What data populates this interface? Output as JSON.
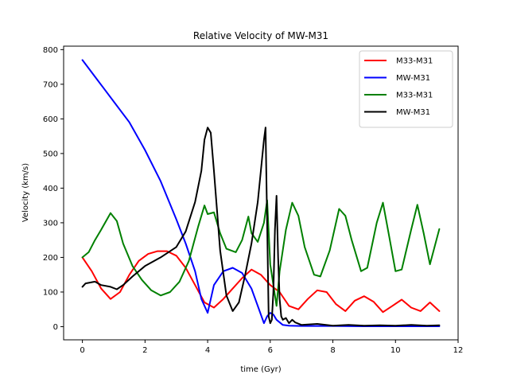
{
  "chart_data": {
    "type": "line",
    "title": "Relative Velocity of MW-M31",
    "xlabel": "time (Gyr)",
    "ylabel": "Velocity (km/s)",
    "xlim": [
      -0.6,
      12
    ],
    "ylim": [
      -38,
      810
    ],
    "xticks": [
      0,
      2,
      4,
      6,
      8,
      10,
      12
    ],
    "yticks": [
      0,
      100,
      200,
      300,
      400,
      500,
      600,
      700,
      800
    ],
    "grid": false,
    "legend_position": "top-right",
    "series": [
      {
        "name": "M33-M31",
        "color": "#ff0000",
        "x": [
          0.0,
          0.3,
          0.6,
          0.9,
          1.2,
          1.5,
          1.8,
          2.1,
          2.4,
          2.7,
          3.0,
          3.3,
          3.6,
          3.9,
          4.2,
          4.5,
          4.8,
          5.1,
          5.4,
          5.7,
          6.0,
          6.3,
          6.6,
          6.9,
          7.2,
          7.5,
          7.8,
          8.1,
          8.4,
          8.7,
          9.0,
          9.3,
          9.6,
          9.9,
          10.2,
          10.5,
          10.8,
          11.1,
          11.4
        ],
        "y": [
          200,
          160,
          110,
          80,
          100,
          150,
          190,
          210,
          218,
          218,
          205,
          170,
          120,
          70,
          55,
          80,
          110,
          140,
          165,
          150,
          120,
          100,
          60,
          50,
          80,
          105,
          100,
          65,
          45,
          75,
          88,
          72,
          42,
          60,
          78,
          55,
          45,
          70,
          45
        ]
      },
      {
        "name": "MW-M31",
        "color": "#0000ff",
        "x": [
          0.0,
          0.5,
          1.0,
          1.5,
          2.0,
          2.5,
          3.0,
          3.3,
          3.6,
          3.8,
          4.0,
          4.2,
          4.5,
          4.8,
          5.1,
          5.4,
          5.6,
          5.8,
          5.9,
          6.0,
          6.1,
          6.2,
          6.4,
          6.6,
          7.0,
          8.0,
          9.0,
          10.0,
          11.0,
          11.4
        ],
        "y": [
          770,
          710,
          650,
          590,
          510,
          420,
          310,
          240,
          160,
          80,
          40,
          120,
          160,
          170,
          155,
          110,
          60,
          10,
          30,
          40,
          35,
          20,
          5,
          3,
          2,
          2,
          1,
          1,
          1,
          1
        ]
      },
      {
        "name": "M33-M31",
        "color": "#008000",
        "x": [
          0.0,
          0.2,
          0.4,
          0.6,
          0.9,
          1.1,
          1.3,
          1.6,
          1.9,
          2.2,
          2.5,
          2.8,
          3.1,
          3.4,
          3.7,
          3.9,
          4.0,
          4.2,
          4.4,
          4.6,
          4.9,
          5.1,
          5.3,
          5.4,
          5.6,
          5.8,
          5.9,
          6.0,
          6.2,
          6.3,
          6.5,
          6.7,
          6.9,
          7.1,
          7.4,
          7.6,
          7.9,
          8.2,
          8.4,
          8.6,
          8.9,
          9.1,
          9.4,
          9.6,
          9.8,
          10.0,
          10.2,
          10.5,
          10.7,
          10.9,
          11.1,
          11.4
        ],
        "y": [
          200,
          215,
          250,
          280,
          328,
          305,
          240,
          175,
          135,
          105,
          90,
          100,
          130,
          190,
          290,
          350,
          325,
          330,
          270,
          225,
          215,
          250,
          318,
          270,
          245,
          300,
          365,
          180,
          60,
          160,
          280,
          358,
          320,
          230,
          150,
          145,
          220,
          340,
          320,
          250,
          160,
          170,
          300,
          358,
          260,
          160,
          165,
          280,
          352,
          270,
          180,
          282
        ]
      },
      {
        "name": "MW-M31",
        "color": "#000000",
        "x": [
          0.0,
          0.1,
          0.4,
          0.6,
          0.9,
          1.1,
          1.3,
          1.6,
          2.0,
          2.5,
          3.0,
          3.3,
          3.6,
          3.8,
          3.9,
          4.0,
          4.1,
          4.2,
          4.4,
          4.6,
          4.8,
          5.0,
          5.2,
          5.4,
          5.6,
          5.7,
          5.8,
          5.85,
          5.9,
          5.95,
          6.0,
          6.05,
          6.1,
          6.15,
          6.2,
          6.25,
          6.3,
          6.35,
          6.4,
          6.5,
          6.6,
          6.7,
          6.8,
          7.0,
          7.5,
          8.0,
          8.5,
          9.0,
          9.5,
          10.0,
          10.5,
          11.0,
          11.4
        ],
        "y": [
          115,
          125,
          130,
          120,
          115,
          108,
          120,
          145,
          175,
          200,
          230,
          275,
          360,
          450,
          540,
          575,
          560,
          450,
          220,
          90,
          45,
          70,
          150,
          240,
          360,
          450,
          540,
          575,
          300,
          30,
          10,
          20,
          100,
          280,
          378,
          200,
          80,
          30,
          20,
          25,
          10,
          20,
          12,
          5,
          8,
          3,
          5,
          3,
          4,
          3,
          5,
          3,
          4
        ]
      }
    ]
  }
}
